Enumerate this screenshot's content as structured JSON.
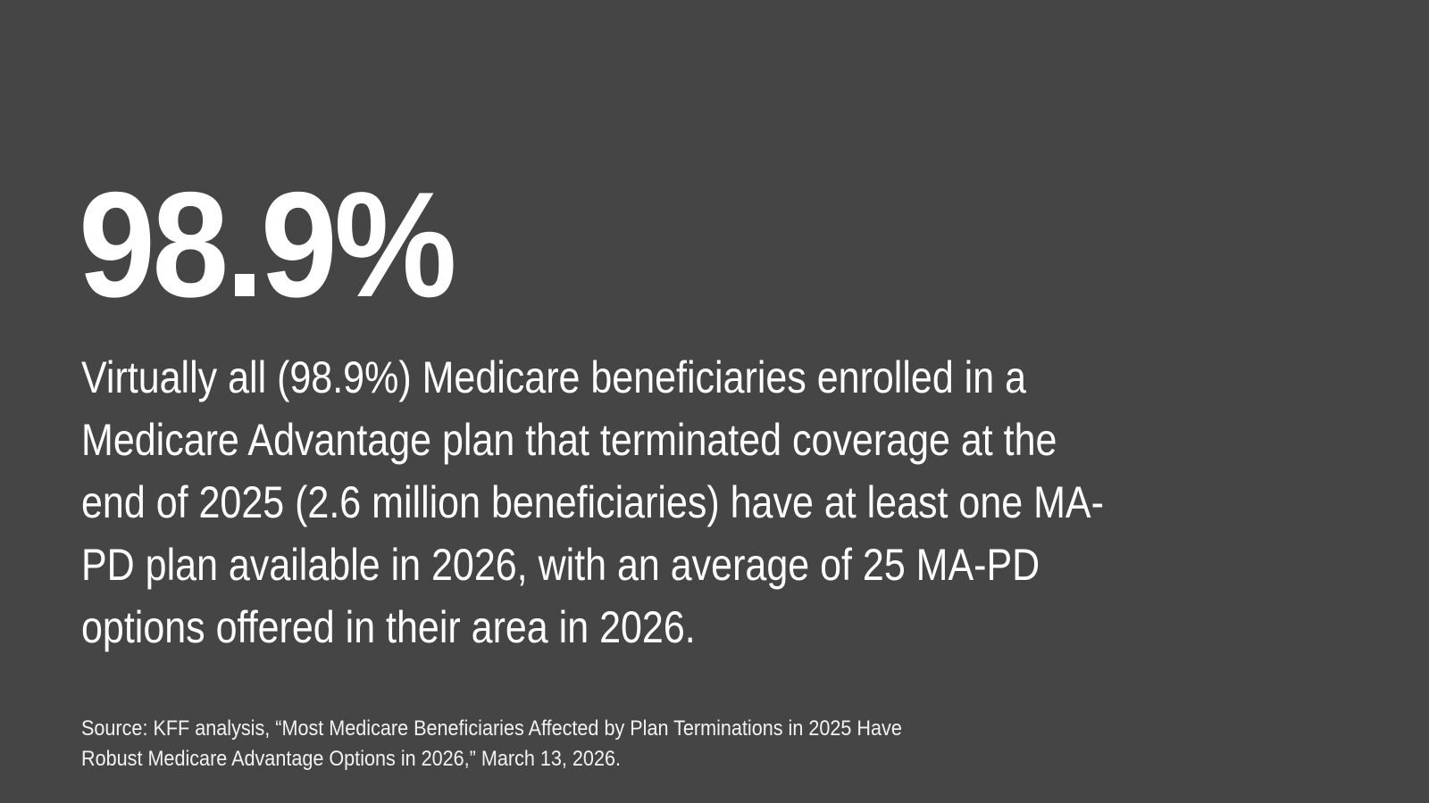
{
  "headline_stat": "98.9%",
  "body_lines": [
    "Virtually all (98.9%) Medicare beneficiaries enrolled in a",
    "Medicare Advantage plan that terminated coverage at the",
    "end of 2025 (2.6 million beneficiaries) have at least one MA-",
    "PD plan available in 2026, with an average of 25 MA-PD",
    "options offered in their area in 2026."
  ],
  "source_lines": [
    "Source: KFF analysis, “Most Medicare Beneficiaries Affected by Plan Terminations in 2025 Have",
    "Robust Medicare Advantage Options in 2026,” March 13, 2026."
  ],
  "colors": {
    "background": "#454545",
    "text": "#ffffff"
  }
}
